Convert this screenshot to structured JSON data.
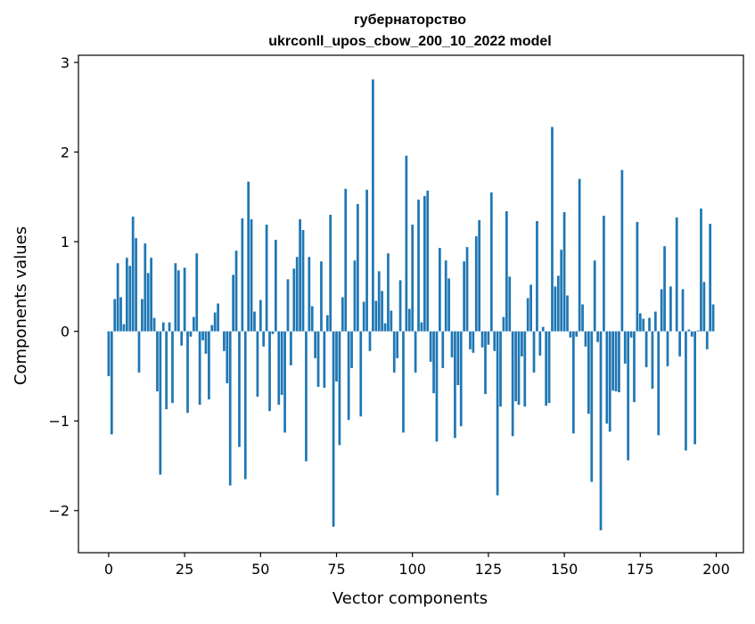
{
  "chart_data": {
    "type": "bar",
    "title": "губернаторство",
    "subtitle": "ukrconll_upos_cbow_200_10_2022 model",
    "xlabel": "Vector components",
    "ylabel": "Components values",
    "xlim": [
      -9.95,
      208.95
    ],
    "ylim": [
      -2.47,
      3.08
    ],
    "xticks": [
      0,
      25,
      50,
      75,
      100,
      125,
      150,
      175,
      200
    ],
    "yticks": [
      -2,
      -1,
      0,
      1,
      2,
      3
    ],
    "ytick_labels": [
      "−2",
      "−1",
      "0",
      "1",
      "2",
      "3"
    ],
    "bar_color": "#1f77b4",
    "grid": false,
    "x": [
      0,
      1,
      2,
      3,
      4,
      5,
      6,
      7,
      8,
      9,
      10,
      11,
      12,
      13,
      14,
      15,
      16,
      17,
      18,
      19,
      20,
      21,
      22,
      23,
      24,
      25,
      26,
      27,
      28,
      29,
      30,
      31,
      32,
      33,
      34,
      35,
      36,
      37,
      38,
      39,
      40,
      41,
      42,
      43,
      44,
      45,
      46,
      47,
      48,
      49,
      50,
      51,
      52,
      53,
      54,
      55,
      56,
      57,
      58,
      59,
      60,
      61,
      62,
      63,
      64,
      65,
      66,
      67,
      68,
      69,
      70,
      71,
      72,
      73,
      74,
      75,
      76,
      77,
      78,
      79,
      80,
      81,
      82,
      83,
      84,
      85,
      86,
      87,
      88,
      89,
      90,
      91,
      92,
      93,
      94,
      95,
      96,
      97,
      98,
      99,
      100,
      101,
      102,
      103,
      104,
      105,
      106,
      107,
      108,
      109,
      110,
      111,
      112,
      113,
      114,
      115,
      116,
      117,
      118,
      119,
      120,
      121,
      122,
      123,
      124,
      125,
      126,
      127,
      128,
      129,
      130,
      131,
      132,
      133,
      134,
      135,
      136,
      137,
      138,
      139,
      140,
      141,
      142,
      143,
      144,
      145,
      146,
      147,
      148,
      149,
      150,
      151,
      152,
      153,
      154,
      155,
      156,
      157,
      158,
      159,
      160,
      161,
      162,
      163,
      164,
      165,
      166,
      167,
      168,
      169,
      170,
      171,
      172,
      173,
      174,
      175,
      176,
      177,
      178,
      179,
      180,
      181,
      182,
      183,
      184,
      185,
      186,
      187,
      188,
      189,
      190,
      191,
      192,
      193,
      194,
      195,
      196,
      197,
      198,
      199
    ],
    "values": [
      -0.5,
      -1.15,
      0.36,
      0.76,
      0.38,
      0.08,
      0.82,
      0.73,
      1.28,
      1.04,
      -0.46,
      0.36,
      0.98,
      0.65,
      0.82,
      0.15,
      -0.67,
      -1.6,
      0.1,
      -0.87,
      0.1,
      -0.8,
      0.76,
      0.68,
      -0.16,
      0.71,
      -0.91,
      -0.06,
      0.16,
      0.87,
      -0.82,
      -0.1,
      -0.25,
      -0.76,
      0.07,
      0.21,
      0.31,
      0.0,
      -0.22,
      -0.58,
      -1.72,
      0.63,
      0.9,
      -1.29,
      1.26,
      -1.65,
      1.67,
      1.25,
      0.22,
      -0.73,
      0.35,
      -0.17,
      1.19,
      -0.89,
      -0.03,
      1.02,
      -0.82,
      -0.71,
      -1.13,
      0.58,
      -0.38,
      0.7,
      0.83,
      1.25,
      1.13,
      -1.45,
      0.83,
      0.28,
      -0.3,
      -0.62,
      0.78,
      -0.63,
      0.18,
      1.3,
      -2.18,
      -0.56,
      -1.27,
      0.38,
      1.59,
      -0.99,
      -0.41,
      0.79,
      1.42,
      -0.95,
      0.33,
      1.58,
      -0.22,
      2.81,
      0.34,
      0.67,
      0.45,
      0.09,
      0.87,
      0.23,
      -0.46,
      -0.3,
      0.57,
      -1.13,
      1.96,
      0.25,
      1.19,
      -0.46,
      1.47,
      0.1,
      1.51,
      1.57,
      -0.34,
      -0.69,
      -1.23,
      0.93,
      -0.41,
      0.79,
      0.59,
      -0.29,
      -1.19,
      -0.6,
      -1.06,
      0.78,
      0.94,
      -0.2,
      -0.24,
      1.06,
      1.24,
      -0.18,
      -0.7,
      -0.15,
      1.55,
      -0.22,
      -1.83,
      -0.84,
      0.16,
      1.34,
      0.61,
      -1.17,
      -0.78,
      -0.82,
      -0.28,
      -0.84,
      0.37,
      0.52,
      -0.46,
      1.23,
      -0.27,
      0.05,
      -0.83,
      -0.8,
      2.28,
      0.5,
      0.62,
      0.91,
      1.33,
      0.4,
      -0.07,
      -1.14,
      -0.06,
      1.7,
      0.3,
      -0.17,
      -0.92,
      -1.68,
      0.79,
      -0.12,
      -2.22,
      1.29,
      -1.03,
      -1.12,
      -0.66,
      -0.67,
      -0.68,
      1.8,
      -0.36,
      -1.44,
      -0.07,
      -0.79,
      1.22,
      0.2,
      0.14,
      -0.4,
      0.15,
      -0.64,
      0.22,
      -1.16,
      0.47,
      0.95,
      -0.39,
      0.5,
      0.0,
      1.27,
      -0.28,
      0.47,
      -1.33,
      0.02,
      -0.06,
      -1.26,
      0.01,
      1.37,
      0.55,
      -0.2,
      1.2,
      0.3
    ]
  }
}
